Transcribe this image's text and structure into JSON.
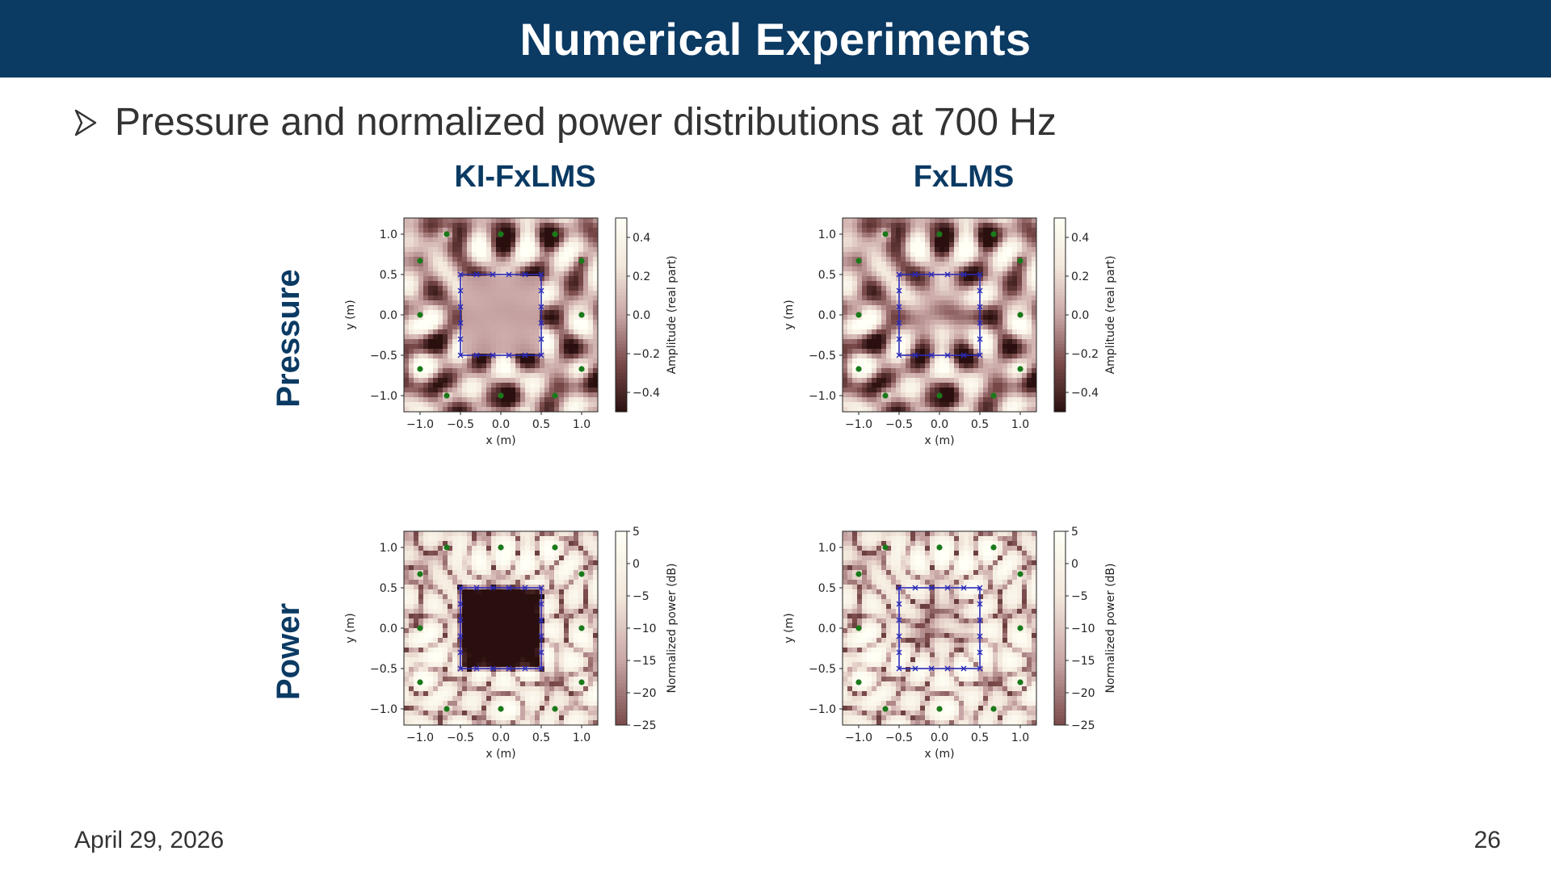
{
  "slide": {
    "title": "Numerical Experiments",
    "bullet": "Pressure and normalized power distributions at 700 Hz",
    "date": "April 29, 2026",
    "page_number": "26"
  },
  "columns": [
    "KI-FxLMS",
    "FxLMS"
  ],
  "rows": [
    "Pressure",
    "Power"
  ],
  "chart_data": [
    {
      "id": "ki-fxlms-pressure",
      "type": "heatmap",
      "xlabel": "x (m)",
      "ylabel": "y (m)",
      "xticks": [
        "−1.0",
        "−0.5",
        "0.0",
        "0.5",
        "1.0"
      ],
      "yticks": [
        "1.0",
        "0.5",
        "0.0",
        "−0.5",
        "−1.0"
      ],
      "xlim": [
        -1.2,
        1.2
      ],
      "ylim": [
        -1.2,
        1.2
      ],
      "colorbar": {
        "label": "Amplitude (real part)",
        "ticks": [
          "0.4",
          "0.2",
          "0.0",
          "−0.2",
          "−0.4"
        ],
        "range": [
          -0.5,
          0.5
        ]
      },
      "sources": [
        [
          -0.67,
          1.0
        ],
        [
          0.0,
          1.0
        ],
        [
          0.67,
          1.0
        ],
        [
          -1.0,
          0.67
        ],
        [
          1.0,
          0.67
        ],
        [
          -1.0,
          0.0
        ],
        [
          1.0,
          0.0
        ],
        [
          -1.0,
          -0.67
        ],
        [
          1.0,
          -0.67
        ],
        [
          -0.67,
          -1.0
        ],
        [
          0.0,
          -1.0
        ],
        [
          0.67,
          -1.0
        ]
      ],
      "region": [
        [
          -0.5,
          -0.5
        ],
        [
          0.5,
          0.5
        ]
      ]
    },
    {
      "id": "fxlms-pressure",
      "type": "heatmap",
      "xlabel": "x (m)",
      "ylabel": "y (m)",
      "xticks": [
        "−1.0",
        "−0.5",
        "0.0",
        "0.5",
        "1.0"
      ],
      "yticks": [
        "1.0",
        "0.5",
        "0.0",
        "−0.5",
        "−1.0"
      ],
      "xlim": [
        -1.2,
        1.2
      ],
      "ylim": [
        -1.2,
        1.2
      ],
      "colorbar": {
        "label": "Amplitude (real part)",
        "ticks": [
          "0.4",
          "0.2",
          "0.0",
          "−0.2",
          "−0.4"
        ],
        "range": [
          -0.5,
          0.5
        ]
      },
      "sources": [
        [
          -0.67,
          1.0
        ],
        [
          0.0,
          1.0
        ],
        [
          0.67,
          1.0
        ],
        [
          -1.0,
          0.67
        ],
        [
          1.0,
          0.67
        ],
        [
          -1.0,
          0.0
        ],
        [
          1.0,
          0.0
        ],
        [
          -1.0,
          -0.67
        ],
        [
          1.0,
          -0.67
        ],
        [
          -0.67,
          -1.0
        ],
        [
          0.0,
          -1.0
        ],
        [
          0.67,
          -1.0
        ]
      ],
      "region": [
        [
          -0.5,
          -0.5
        ],
        [
          0.5,
          0.5
        ]
      ]
    },
    {
      "id": "ki-fxlms-power",
      "type": "heatmap",
      "xlabel": "x (m)",
      "ylabel": "y (m)",
      "xticks": [
        "−1.0",
        "−0.5",
        "0.0",
        "0.5",
        "1.0"
      ],
      "yticks": [
        "1.0",
        "0.5",
        "0.0",
        "−0.5",
        "−1.0"
      ],
      "xlim": [
        -1.2,
        1.2
      ],
      "ylim": [
        -1.2,
        1.2
      ],
      "colorbar": {
        "label": "Normalized power (dB)",
        "ticks": [
          "5",
          "0",
          "−5",
          "−10",
          "−15",
          "−20",
          "−25"
        ],
        "range": [
          -25,
          5
        ]
      },
      "sources": [
        [
          -0.67,
          1.0
        ],
        [
          0.0,
          1.0
        ],
        [
          0.67,
          1.0
        ],
        [
          -1.0,
          0.67
        ],
        [
          1.0,
          0.67
        ],
        [
          -1.0,
          0.0
        ],
        [
          1.0,
          0.0
        ],
        [
          -1.0,
          -0.67
        ],
        [
          1.0,
          -0.67
        ],
        [
          -0.67,
          -1.0
        ],
        [
          0.0,
          -1.0
        ],
        [
          0.67,
          -1.0
        ]
      ],
      "region": [
        [
          -0.5,
          -0.5
        ],
        [
          0.5,
          0.5
        ]
      ]
    },
    {
      "id": "fxlms-power",
      "type": "heatmap",
      "xlabel": "x (m)",
      "ylabel": "y (m)",
      "xticks": [
        "−1.0",
        "−0.5",
        "0.0",
        "0.5",
        "1.0"
      ],
      "yticks": [
        "1.0",
        "0.5",
        "0.0",
        "−0.5",
        "−1.0"
      ],
      "xlim": [
        -1.2,
        1.2
      ],
      "ylim": [
        -1.2,
        1.2
      ],
      "colorbar": {
        "label": "Normalized power (dB)",
        "ticks": [
          "5",
          "0",
          "−5",
          "−10",
          "−15",
          "−20",
          "−25"
        ],
        "range": [
          -25,
          5
        ]
      },
      "sources": [
        [
          -0.67,
          1.0
        ],
        [
          0.0,
          1.0
        ],
        [
          0.67,
          1.0
        ],
        [
          -1.0,
          0.67
        ],
        [
          1.0,
          0.67
        ],
        [
          -1.0,
          0.0
        ],
        [
          1.0,
          0.0
        ],
        [
          -1.0,
          -0.67
        ],
        [
          1.0,
          -0.67
        ],
        [
          -0.67,
          -1.0
        ],
        [
          0.0,
          -1.0
        ],
        [
          0.67,
          -1.0
        ]
      ],
      "region": [
        [
          -0.5,
          -0.5
        ],
        [
          0.5,
          0.5
        ]
      ]
    }
  ],
  "colors": {
    "banner": "#0b3a63",
    "heading": "#0b3a63",
    "source_marker": "#1a7a1a",
    "mic_marker": "#2a2ab8",
    "colormap": [
      "#2a0f0f",
      "#7a4a4a",
      "#c9a6a6",
      "#f3e8dc",
      "#fffff6"
    ]
  }
}
